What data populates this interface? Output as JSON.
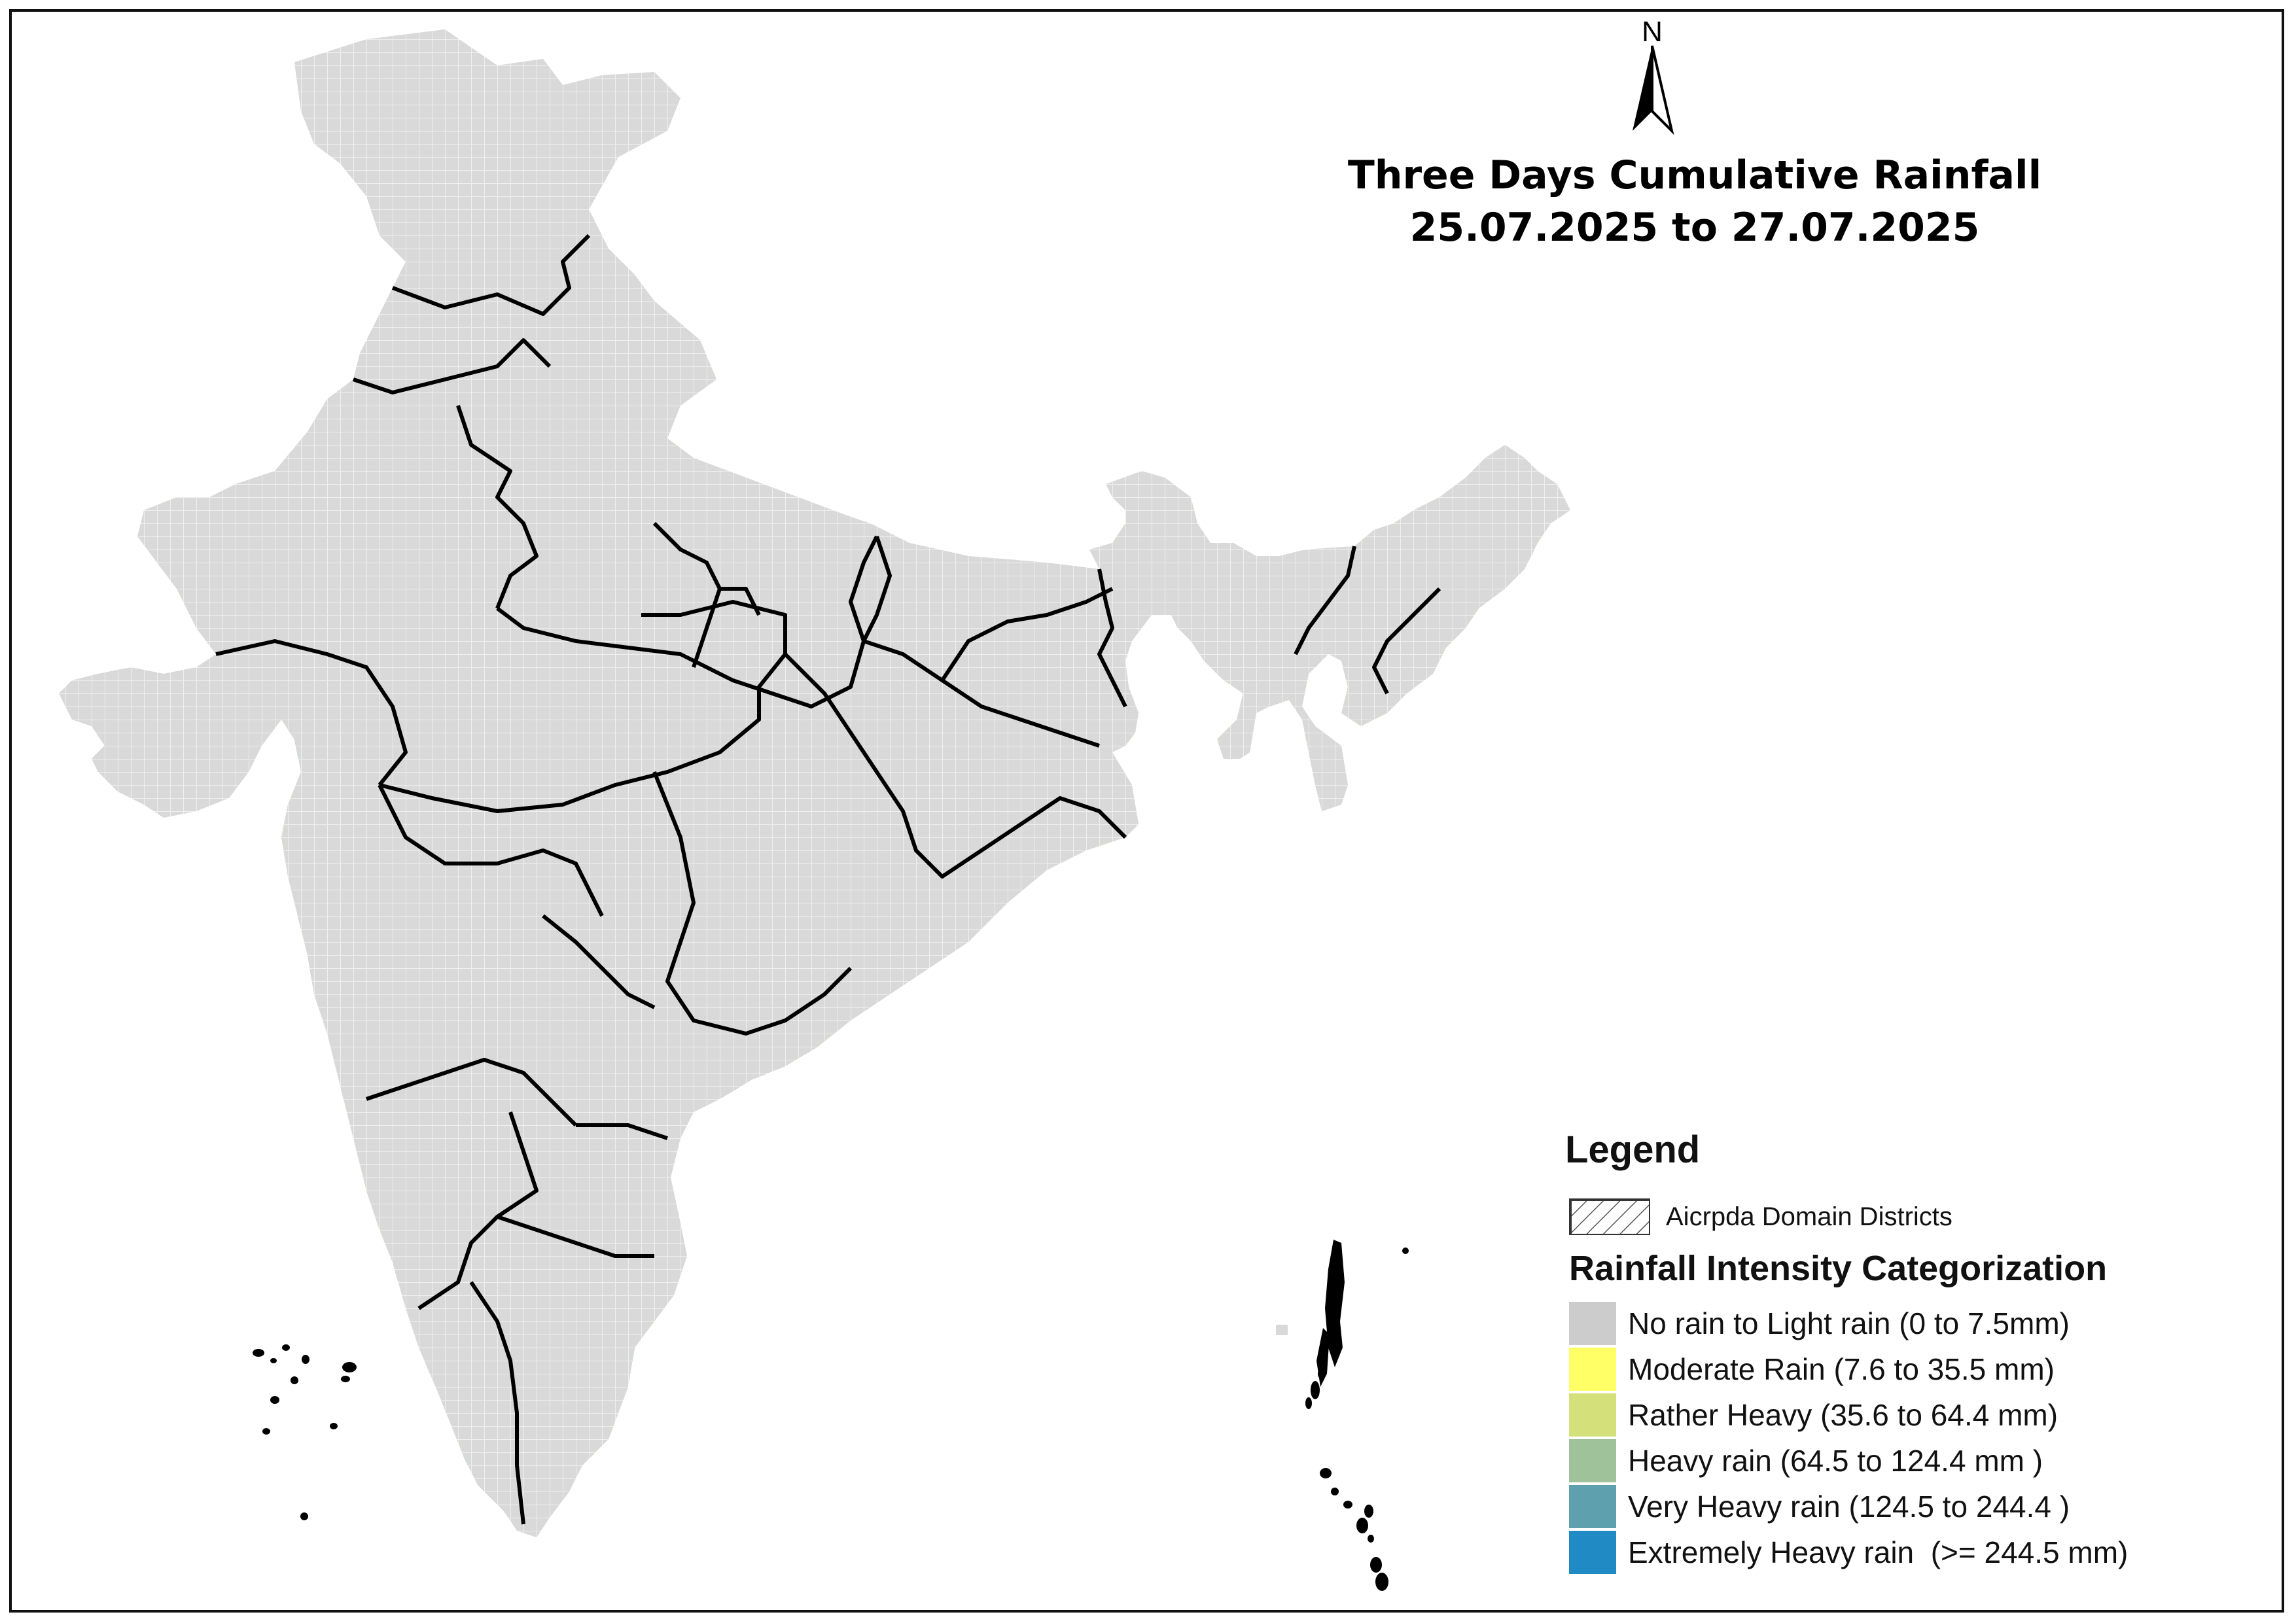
{
  "title": {
    "line1": "Three Days Cumulative Rainfall",
    "line2": "25.07.2025 to 27.07.2025"
  },
  "north_arrow": {
    "label": "N",
    "icon": "north-arrow-icon"
  },
  "legend": {
    "heading": "Legend",
    "hatch_label": "Aicrpda Domain Districts",
    "categories_heading": "Rainfall Intensity Categorization",
    "categories": [
      {
        "label": "No rain to Light rain (0 to 7.5mm)",
        "color": "#cccccc"
      },
      {
        "label": "Moderate Rain (7.6 to 35.5 mm)",
        "color": "#ffff66"
      },
      {
        "label": "Rather Heavy (35.6 to 64.4 mm)",
        "color": "#d4e079"
      },
      {
        "label": "Heavy rain (64.5 to 124.4 mm )",
        "color": "#9fc29a"
      },
      {
        "label": "Very Heavy rain (124.5 to 244.4 )",
        "color": "#5fa0ae"
      },
      {
        "label": "Extremely Heavy rain  (>= 244.5 mm)",
        "color": "#1f8ac4"
      }
    ]
  },
  "colors": {
    "land_base": "#d9d9d9",
    "grid_line": "#eeeeee",
    "boundary": "#000000",
    "district_line": "#8a8a8a",
    "hatch": "#666666"
  }
}
